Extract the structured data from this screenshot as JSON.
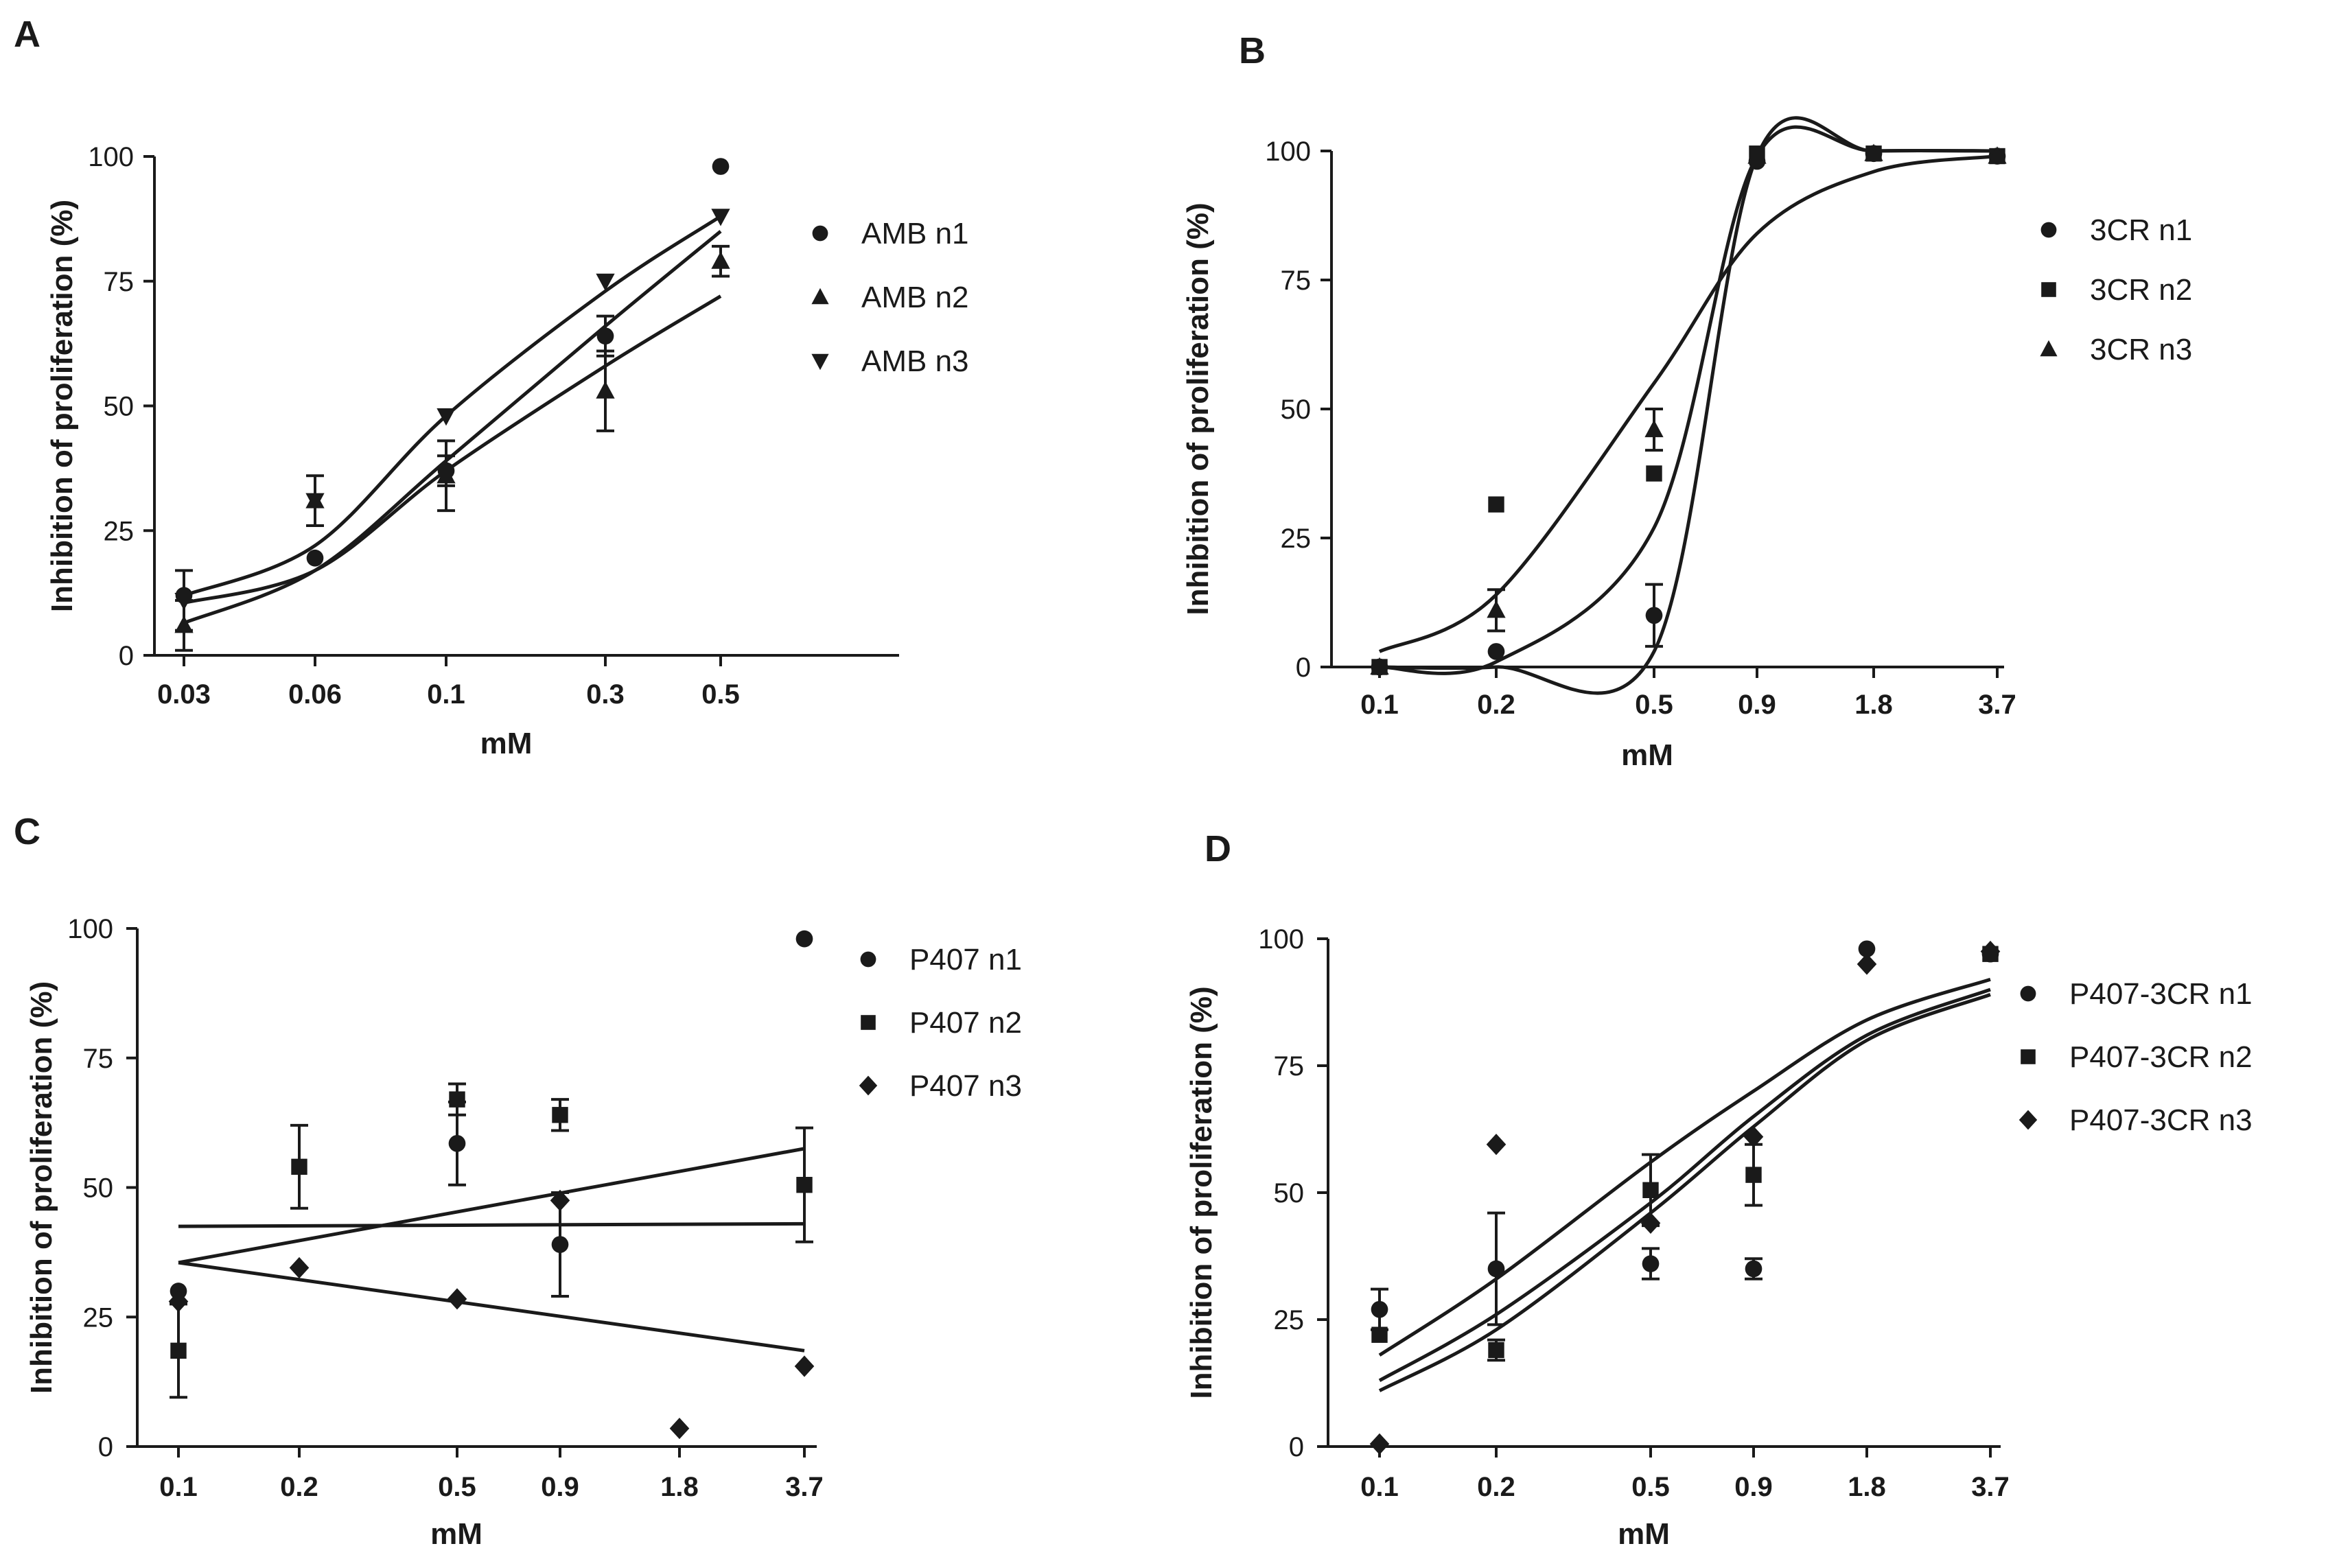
{
  "colors": {
    "ink": "#1a1a1a",
    "background": "#ffffff"
  },
  "chart_data": [
    {
      "panel": "A",
      "type": "scatter",
      "xlabel": "mM",
      "ylabel": "Inhibition of proliferation (%)",
      "x_ticks": [
        "0.03",
        "0.06",
        "0.1",
        "0.3",
        "0.5"
      ],
      "y_ticks": [
        "0",
        "25",
        "50",
        "75",
        "100"
      ],
      "ylim": [
        0,
        100
      ],
      "legend_position": "right",
      "series": [
        {
          "name": "AMB n1",
          "marker": "circle",
          "values": [
            12,
            19.5,
            37,
            64,
            98
          ],
          "err": [
            0,
            0,
            3,
            4,
            0
          ]
        },
        {
          "name": "AMB n2",
          "marker": "triangle",
          "values": [
            6,
            31,
            36,
            53,
            79
          ],
          "err": [
            5,
            5,
            7,
            8,
            3
          ]
        },
        {
          "name": "AMB n3",
          "marker": "triangle-down",
          "values": [
            11,
            31,
            48,
            75,
            88
          ],
          "err": [
            6,
            0,
            0,
            0,
            0
          ]
        }
      ],
      "fits": [
        {
          "series": "AMB n1",
          "values": [
            10.5,
            17,
            37,
            58,
            72
          ]
        },
        {
          "series": "AMB n2",
          "values": [
            6.5,
            17,
            39,
            66,
            85
          ]
        },
        {
          "series": "AMB n3",
          "values": [
            12,
            22,
            48,
            73,
            88
          ]
        }
      ]
    },
    {
      "panel": "B",
      "type": "scatter",
      "xlabel": "mM",
      "ylabel": "Inhibition of proliferation (%)",
      "x_ticks": [
        "0.1",
        "0.2",
        "0.5",
        "0.9",
        "1.8",
        "3.7"
      ],
      "y_ticks": [
        "0",
        "25",
        "50",
        "75",
        "100"
      ],
      "ylim": [
        0,
        100
      ],
      "legend_position": "right",
      "series": [
        {
          "name": "3CR n1",
          "marker": "circle",
          "values": [
            0,
            3,
            10,
            98,
            99.5,
            99
          ],
          "err": [
            0,
            0,
            6,
            0,
            0,
            0
          ]
        },
        {
          "name": "3CR n2",
          "marker": "square",
          "values": [
            0,
            31.5,
            37.5,
            99.5,
            99.5,
            99
          ],
          "err": [
            0,
            0,
            0,
            0,
            0,
            0
          ]
        },
        {
          "name": "3CR n3",
          "marker": "triangle",
          "values": [
            0,
            11,
            46,
            99,
            99.5,
            99
          ],
          "err": [
            0,
            4,
            4,
            0,
            0,
            0
          ]
        }
      ],
      "fits": [
        {
          "series": "3CR n1",
          "values": [
            0,
            0,
            3,
            99,
            100,
            100
          ]
        },
        {
          "series": "3CR n2",
          "values": [
            0,
            1,
            27,
            99,
            100,
            100
          ]
        },
        {
          "series": "3CR n3",
          "values": [
            3,
            14,
            55,
            84,
            96,
            99
          ]
        }
      ]
    },
    {
      "panel": "C",
      "type": "scatter",
      "xlabel": "mM",
      "ylabel": "Inhibition of proliferation (%)",
      "x_ticks": [
        "0.1",
        "0.2",
        "0.5",
        "0.9",
        "1.8",
        "3.7"
      ],
      "y_ticks": [
        "0",
        "25",
        "50",
        "75",
        "100"
      ],
      "ylim": [
        0,
        100
      ],
      "legend_position": "right",
      "series": [
        {
          "name": "P407 n1",
          "marker": "circle",
          "values": [
            30,
            null,
            58.5,
            39,
            null,
            98
          ],
          "err": [
            0,
            0,
            8,
            10,
            0,
            0
          ]
        },
        {
          "name": "P407 n2",
          "marker": "square",
          "values": [
            18.5,
            54,
            67,
            64,
            null,
            50.5
          ],
          "err": [
            9,
            8,
            3,
            3,
            0,
            11
          ]
        },
        {
          "name": "P407 n3",
          "marker": "diamond",
          "values": [
            28,
            34.5,
            28.5,
            47.5,
            3.5,
            15.5
          ],
          "err": [
            0,
            0,
            0,
            0,
            0,
            0
          ]
        }
      ],
      "fits": [
        {
          "series": "P407 n1",
          "values": [
            42.5,
            43
          ]
        },
        {
          "series": "P407 n2",
          "values": [
            35.5,
            57.5
          ]
        },
        {
          "series": "P407 n3",
          "values": [
            35.5,
            18.5
          ]
        }
      ]
    },
    {
      "panel": "D",
      "type": "scatter",
      "xlabel": "mM",
      "ylabel": "Inhibition of proliferation (%)",
      "x_ticks": [
        "0.1",
        "0.2",
        "0.5",
        "0.9",
        "1.8",
        "3.7"
      ],
      "y_ticks": [
        "0",
        "25",
        "50",
        "75",
        "100"
      ],
      "ylim": [
        0,
        100
      ],
      "legend_position": "right",
      "series": [
        {
          "name": "P407-3CR n1",
          "marker": "circle",
          "values": [
            27,
            35,
            36,
            35,
            98,
            97
          ],
          "err": [
            4,
            11,
            3,
            2,
            0,
            0
          ]
        },
        {
          "name": "P407-3CR n2",
          "marker": "square",
          "values": [
            22,
            19,
            50.5,
            53.5,
            null,
            97
          ],
          "err": [
            0,
            2,
            7,
            6,
            0,
            0
          ]
        },
        {
          "name": "P407-3CR n3",
          "marker": "diamond",
          "values": [
            0.5,
            59.5,
            44,
            61,
            95,
            97.5
          ],
          "err": [
            0,
            0,
            0,
            0,
            0,
            0
          ]
        }
      ],
      "fits": [
        {
          "series": "P407-3CR n1",
          "values": [
            18,
            33,
            56,
            70,
            84,
            92
          ]
        },
        {
          "series": "P407-3CR n2",
          "values": [
            13,
            26,
            48,
            65,
            81,
            90
          ]
        },
        {
          "series": "P407-3CR n3",
          "values": [
            11,
            23,
            46,
            63,
            80,
            89
          ]
        }
      ]
    }
  ]
}
